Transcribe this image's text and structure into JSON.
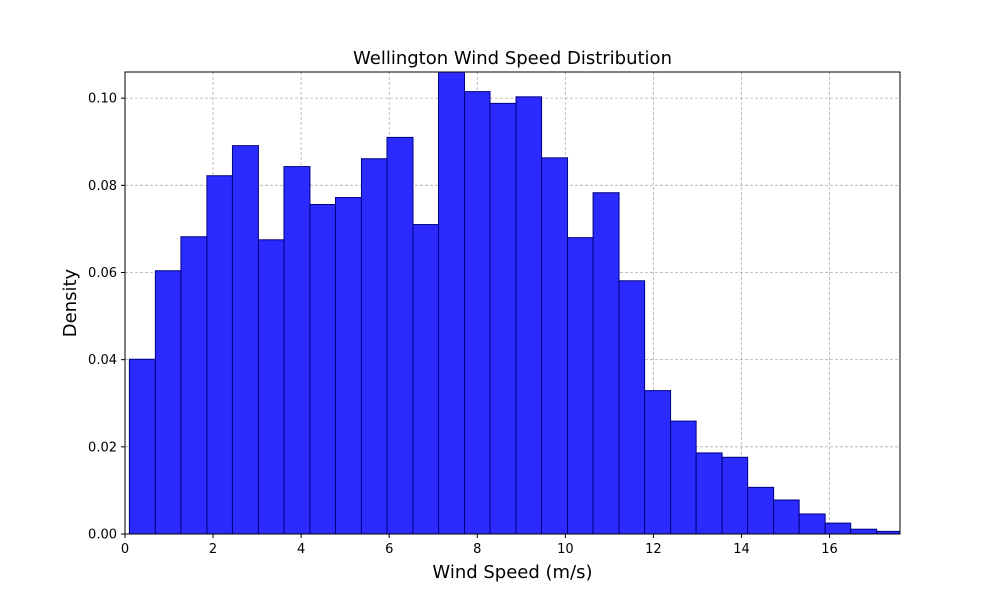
{
  "chart_data": {
    "type": "bar",
    "title": "Wellington Wind Speed Distribution",
    "xlabel": "Wind Speed (m/s)",
    "ylabel": "Density",
    "xlim": [
      0,
      17.6
    ],
    "ylim": [
      0,
      0.106
    ],
    "xticks": [
      0,
      2,
      4,
      6,
      8,
      10,
      12,
      14,
      16
    ],
    "xtick_labels": [
      "0",
      "2",
      "4",
      "6",
      "8",
      "10",
      "12",
      "14",
      "16"
    ],
    "yticks": [
      0,
      0.02,
      0.04,
      0.06,
      0.08,
      0.1
    ],
    "ytick_labels": [
      "0.00",
      "0.02",
      "0.04",
      "0.06",
      "0.08",
      "0.10"
    ],
    "grid": true,
    "color": "#2b2bff",
    "edge_color": "#000080",
    "bins": [
      {
        "x0": 0.1,
        "x1": 0.69,
        "value": 0.0401
      },
      {
        "x0": 0.69,
        "x1": 1.27,
        "value": 0.0604
      },
      {
        "x0": 1.27,
        "x1": 1.86,
        "value": 0.0682
      },
      {
        "x0": 1.86,
        "x1": 2.44,
        "value": 0.0822
      },
      {
        "x0": 2.44,
        "x1": 3.03,
        "value": 0.0891
      },
      {
        "x0": 3.03,
        "x1": 3.61,
        "value": 0.0675
      },
      {
        "x0": 3.61,
        "x1": 4.2,
        "value": 0.0843
      },
      {
        "x0": 4.2,
        "x1": 4.78,
        "value": 0.0756
      },
      {
        "x0": 4.78,
        "x1": 5.37,
        "value": 0.0772
      },
      {
        "x0": 5.37,
        "x1": 5.95,
        "value": 0.0861
      },
      {
        "x0": 5.95,
        "x1": 6.54,
        "value": 0.091
      },
      {
        "x0": 6.54,
        "x1": 7.12,
        "value": 0.071
      },
      {
        "x0": 7.12,
        "x1": 7.71,
        "value": 0.1062
      },
      {
        "x0": 7.71,
        "x1": 8.29,
        "value": 0.1015
      },
      {
        "x0": 8.29,
        "x1": 8.88,
        "value": 0.0988
      },
      {
        "x0": 8.88,
        "x1": 9.46,
        "value": 0.1003
      },
      {
        "x0": 9.46,
        "x1": 10.05,
        "value": 0.0863
      },
      {
        "x0": 10.05,
        "x1": 10.63,
        "value": 0.068
      },
      {
        "x0": 10.63,
        "x1": 11.22,
        "value": 0.0783
      },
      {
        "x0": 11.22,
        "x1": 11.8,
        "value": 0.0581
      },
      {
        "x0": 11.8,
        "x1": 12.39,
        "value": 0.0329
      },
      {
        "x0": 12.39,
        "x1": 12.97,
        "value": 0.0259
      },
      {
        "x0": 12.97,
        "x1": 13.56,
        "value": 0.0186
      },
      {
        "x0": 13.56,
        "x1": 14.14,
        "value": 0.0176
      },
      {
        "x0": 14.14,
        "x1": 14.73,
        "value": 0.0107
      },
      {
        "x0": 14.73,
        "x1": 15.31,
        "value": 0.0078
      },
      {
        "x0": 15.31,
        "x1": 15.9,
        "value": 0.0046
      },
      {
        "x0": 15.9,
        "x1": 16.48,
        "value": 0.0025
      },
      {
        "x0": 16.48,
        "x1": 17.07,
        "value": 0.0011
      },
      {
        "x0": 17.07,
        "x1": 17.65,
        "value": 0.0006
      }
    ]
  }
}
